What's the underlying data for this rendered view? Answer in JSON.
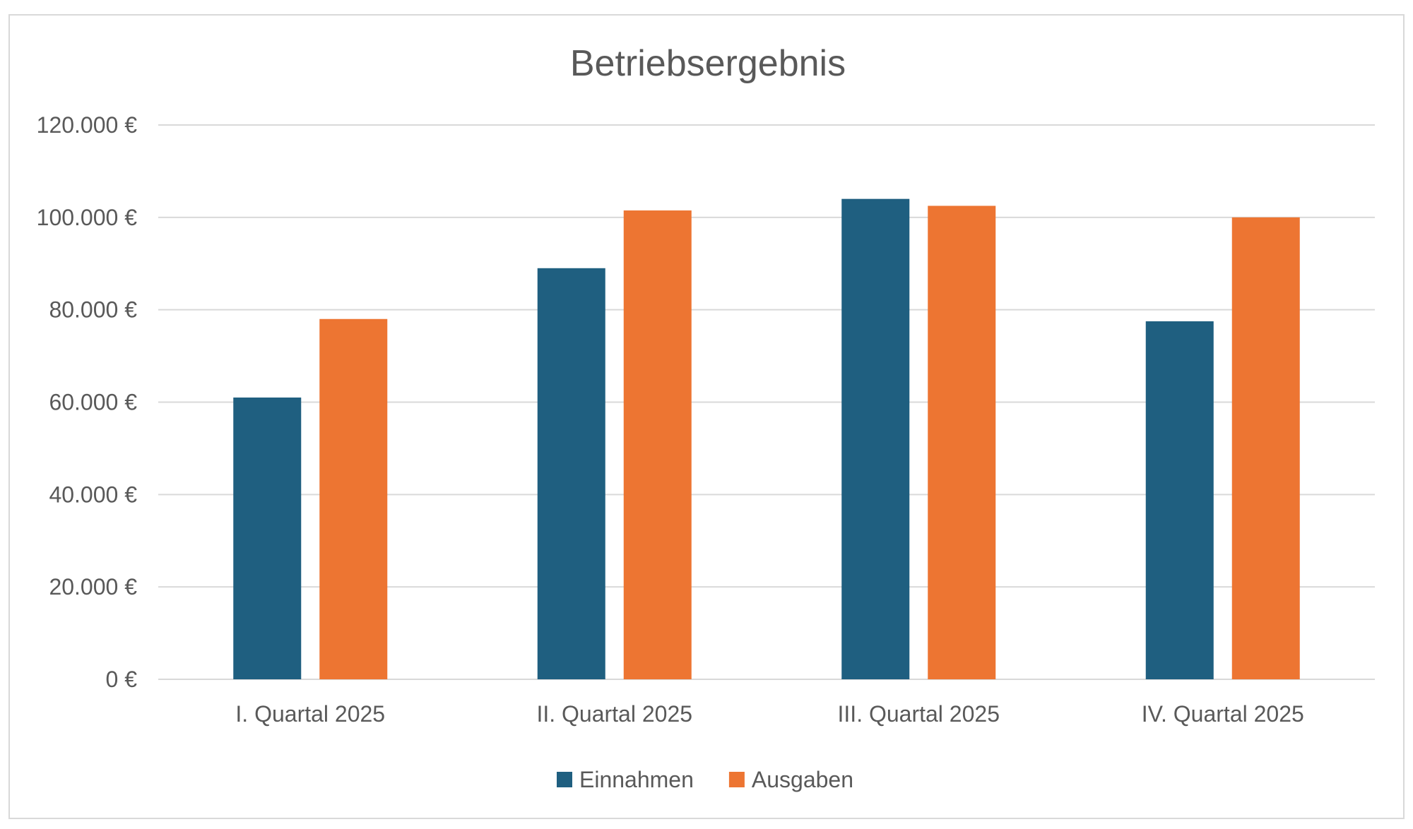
{
  "chart_data": {
    "type": "bar",
    "title": "Betriebsergebnis",
    "categories": [
      "I. Quartal  2025",
      "II. Quartal  2025",
      "III. Quartal  2025",
      "IV. Quartal  2025"
    ],
    "series": [
      {
        "name": "Einnahmen",
        "color": "#1f5f80",
        "values": [
          61000,
          89000,
          104000,
          77500
        ]
      },
      {
        "name": "Ausgaben",
        "color": "#ed7532",
        "values": [
          78000,
          101500,
          102500,
          100000
        ]
      }
    ],
    "yticks": [
      {
        "value": 0,
        "label": "0 €"
      },
      {
        "value": 20000,
        "label": "20.000 €"
      },
      {
        "value": 40000,
        "label": "40.000 €"
      },
      {
        "value": 60000,
        "label": "60.000 €"
      },
      {
        "value": 80000,
        "label": "80.000 €"
      },
      {
        "value": 100000,
        "label": "100.000 €"
      },
      {
        "value": 120000,
        "label": "120.000 €"
      }
    ],
    "ylim": [
      0,
      120000
    ],
    "grid": true,
    "legend_position": "bottom"
  }
}
